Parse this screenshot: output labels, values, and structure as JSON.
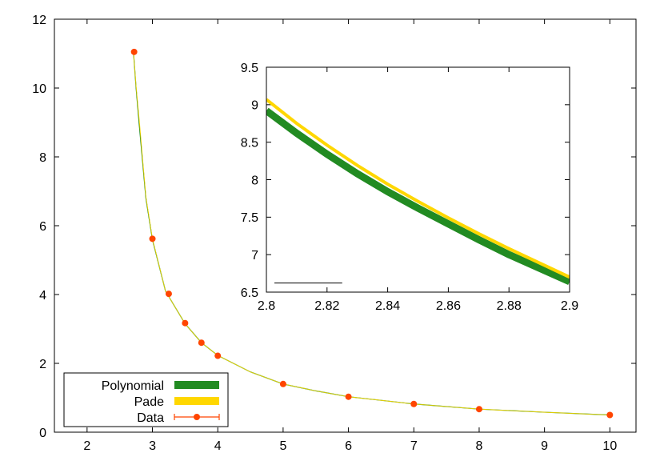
{
  "colors": {
    "polynomial": "#228b22",
    "pade": "#ffd700",
    "data": "#ff4500",
    "axis": "#000000",
    "background": "#ffffff"
  },
  "chart_data": [
    {
      "type": "line",
      "title": "",
      "xlabel": "",
      "ylabel": "",
      "xlim": [
        1.5,
        10.4
      ],
      "ylim": [
        0,
        12
      ],
      "xticks": [
        2,
        3,
        4,
        5,
        6,
        7,
        8,
        9,
        10
      ],
      "yticks": [
        0,
        2,
        4,
        6,
        8,
        10,
        12
      ],
      "grid": false,
      "legend": {
        "position": "bottom-left",
        "entries": [
          "Polynomial",
          "Pade",
          "Data"
        ]
      },
      "series": [
        {
          "name": "Polynomial",
          "style": "thick-line",
          "x": [
            2.71,
            2.75,
            2.8,
            2.9,
            3.0,
            3.2,
            3.5,
            3.75,
            4.0,
            4.5,
            5.0,
            5.5,
            6.0,
            7.0,
            8.0,
            9.0,
            10.0
          ],
          "y": [
            11.05,
            10.0,
            8.9,
            6.8,
            5.6,
            4.1,
            3.15,
            2.6,
            2.23,
            1.75,
            1.4,
            1.2,
            1.03,
            0.82,
            0.67,
            0.58,
            0.5
          ]
        },
        {
          "name": "Pade",
          "style": "thick-line",
          "x": [
            2.71,
            2.75,
            2.8,
            2.9,
            3.0,
            3.2,
            3.5,
            3.75,
            4.0,
            4.5,
            5.0,
            5.5,
            6.0,
            7.0,
            8.0,
            9.0,
            10.0
          ],
          "y": [
            11.05,
            10.05,
            9.05,
            6.85,
            5.62,
            4.1,
            3.15,
            2.6,
            2.23,
            1.75,
            1.4,
            1.2,
            1.03,
            0.82,
            0.67,
            0.58,
            0.5
          ]
        },
        {
          "name": "Data",
          "style": "points",
          "x": [
            2.72,
            3.0,
            3.25,
            3.5,
            3.75,
            4.0,
            5.0,
            6.0,
            7.0,
            8.0,
            10.0
          ],
          "y": [
            11.05,
            5.62,
            4.02,
            3.17,
            2.6,
            2.22,
            1.4,
            1.03,
            0.82,
            0.67,
            0.5
          ]
        }
      ]
    },
    {
      "type": "line",
      "title": "",
      "xlabel": "",
      "ylabel": "",
      "inset": true,
      "xlim": [
        2.8,
        2.9
      ],
      "ylim": [
        6.5,
        9.5
      ],
      "xticks": [
        2.8,
        2.82,
        2.84,
        2.86,
        2.88,
        2.9
      ],
      "yticks": [
        6.5,
        7,
        7.5,
        8,
        8.5,
        9,
        9.5
      ],
      "grid": false,
      "series": [
        {
          "name": "Polynomial",
          "x": [
            2.8,
            2.81,
            2.82,
            2.83,
            2.84,
            2.85,
            2.86,
            2.87,
            2.88,
            2.89,
            2.9
          ],
          "y": [
            8.92,
            8.62,
            8.34,
            8.08,
            7.84,
            7.62,
            7.41,
            7.2,
            7.0,
            6.82,
            6.64
          ]
        },
        {
          "name": "Pade",
          "x": [
            2.8,
            2.81,
            2.82,
            2.83,
            2.84,
            2.85,
            2.86,
            2.87,
            2.88,
            2.89,
            2.9
          ],
          "y": [
            9.07,
            8.75,
            8.46,
            8.19,
            7.94,
            7.71,
            7.49,
            7.28,
            7.08,
            6.89,
            6.7
          ]
        },
        {
          "name": "Data",
          "x": [
            2.8,
            2.825
          ],
          "y": [
            6.6,
            6.6
          ],
          "style": "error-bar-segment"
        }
      ]
    }
  ]
}
